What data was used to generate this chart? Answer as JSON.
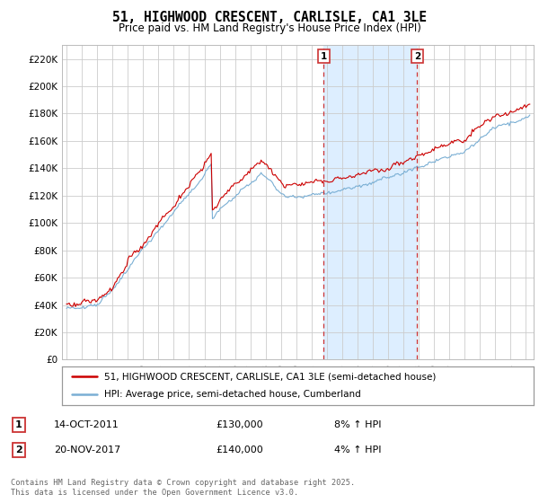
{
  "title": "51, HIGHWOOD CRESCENT, CARLISLE, CA1 3LE",
  "subtitle": "Price paid vs. HM Land Registry's House Price Index (HPI)",
  "ylabel_ticks": [
    "£0",
    "£20K",
    "£40K",
    "£60K",
    "£80K",
    "£100K",
    "£120K",
    "£140K",
    "£160K",
    "£180K",
    "£200K",
    "£220K"
  ],
  "ytick_values": [
    0,
    20000,
    40000,
    60000,
    80000,
    100000,
    120000,
    140000,
    160000,
    180000,
    200000,
    220000
  ],
  "ylim": [
    0,
    230000
  ],
  "xlim_start": 1994.7,
  "xlim_end": 2025.5,
  "line1_color": "#cc0000",
  "line2_color": "#7aafd4",
  "marker1_x": 2011.79,
  "marker2_x": 2017.9,
  "marker1_label": "1",
  "marker2_label": "2",
  "legend_line1": "51, HIGHWOOD CRESCENT, CARLISLE, CA1 3LE (semi-detached house)",
  "legend_line2": "HPI: Average price, semi-detached house, Cumberland",
  "annotation1_date": "14-OCT-2011",
  "annotation1_price": "£130,000",
  "annotation1_hpi": "8% ↑ HPI",
  "annotation2_date": "20-NOV-2017",
  "annotation2_price": "£140,000",
  "annotation2_hpi": "4% ↑ HPI",
  "footer_text": "Contains HM Land Registry data © Crown copyright and database right 2025.\nThis data is licensed under the Open Government Licence v3.0.",
  "background_color": "#ffffff",
  "grid_color": "#cccccc",
  "shaded_region_color": "#ddeeff",
  "title_fontsize": 11,
  "subtitle_fontsize": 9
}
